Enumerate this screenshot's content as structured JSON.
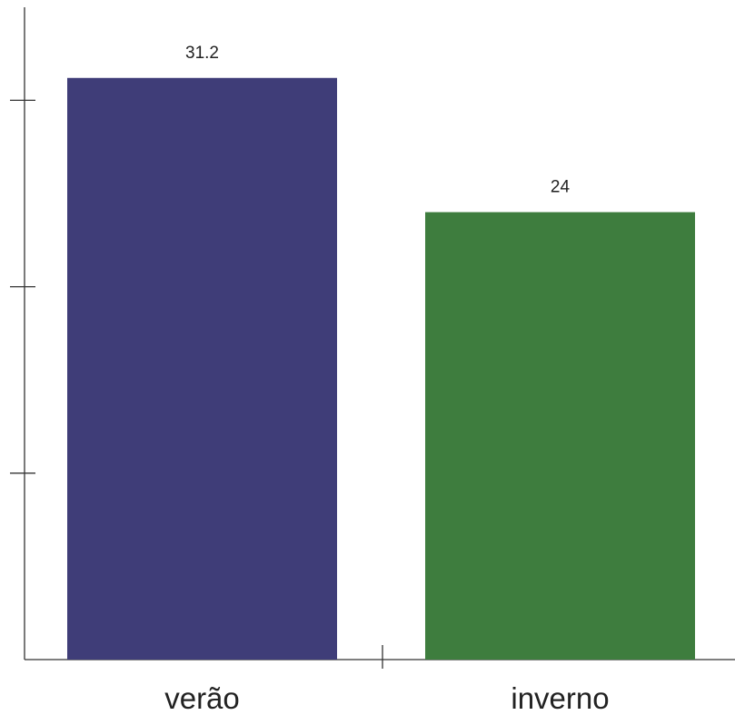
{
  "chart_data": {
    "type": "bar",
    "categories": [
      "verão",
      "inverno"
    ],
    "values": [
      31.2,
      24
    ],
    "data_labels": [
      "31.2",
      "24"
    ],
    "colors": [
      "#3f3d78",
      "#3e7d3e"
    ],
    "title": "",
    "xlabel": "",
    "ylabel": "",
    "ylim": [
      0,
      35
    ],
    "y_ticks": [
      10,
      20,
      30
    ],
    "grid": false,
    "legend": "none"
  }
}
